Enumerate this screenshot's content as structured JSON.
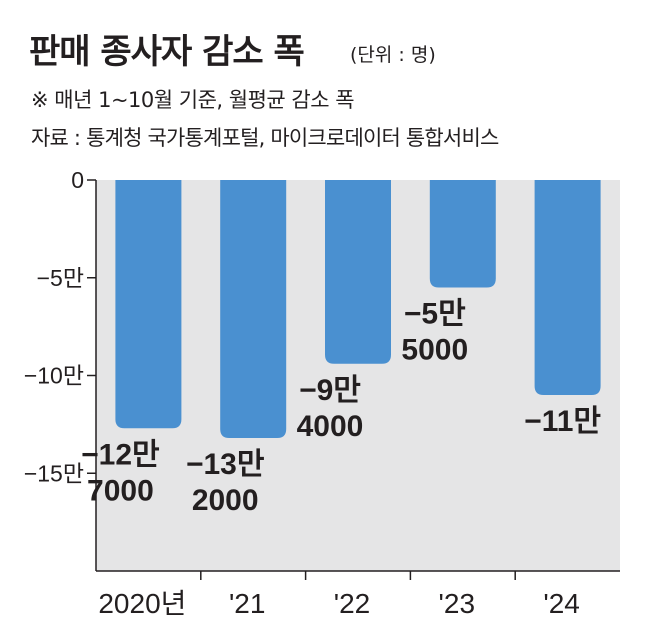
{
  "header": {
    "title": "판매 종사자 감소 폭",
    "unit": "(단위 : 명)",
    "note": "※ 매년 1~10월 기준, 월평균 감소 폭",
    "source": "자료 : 통계청 국가통계포털, 마이크로데이터 통합서비스"
  },
  "colors": {
    "bar": "#4a90d0",
    "plot_bg": "#e5e5e6",
    "axis": "#231f20"
  },
  "chart_data": {
    "type": "bar",
    "title": "판매 종사자 감소 폭",
    "unit": "(단위 : 명)",
    "categories": [
      "2020년",
      "'21",
      "'22",
      "'23",
      "'24"
    ],
    "values": [
      -127000,
      -132000,
      -94000,
      -55000,
      -110000
    ],
    "data_labels": [
      [
        "−12만",
        "7000"
      ],
      [
        "−13만",
        "2000"
      ],
      [
        "−9만",
        "4000"
      ],
      [
        "−5만",
        "5000"
      ],
      [
        "−11만"
      ]
    ],
    "y_ticks": [
      0,
      -50000,
      -100000,
      -150000
    ],
    "y_tick_labels": [
      "0",
      "−5만",
      "−10만",
      "−15만"
    ],
    "ylim": [
      -200000,
      0
    ],
    "grid": false,
    "legend": "none"
  }
}
